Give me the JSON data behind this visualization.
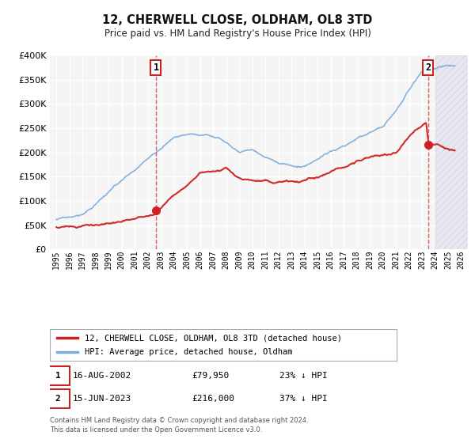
{
  "title": "12, CHERWELL CLOSE, OLDHAM, OL8 3TD",
  "subtitle": "Price paid vs. HM Land Registry's House Price Index (HPI)",
  "ylim": [
    0,
    400000
  ],
  "yticks": [
    0,
    50000,
    100000,
    150000,
    200000,
    250000,
    300000,
    350000,
    400000
  ],
  "xlim_start": 1994.5,
  "xlim_end": 2026.5,
  "background_color": "#f5f5f5",
  "plot_bg_color": "#f5f5f5",
  "grid_color": "#ffffff",
  "hpi_color": "#7aabdb",
  "price_color": "#cc2222",
  "sale1_date": 2002.62,
  "sale1_price": 79950,
  "sale1_label": "1",
  "sale2_date": 2023.46,
  "sale2_price": 216000,
  "sale2_label": "2",
  "legend_line1": "12, CHERWELL CLOSE, OLDHAM, OL8 3TD (detached house)",
  "legend_line2": "HPI: Average price, detached house, Oldham",
  "info1_num": "1",
  "info1_date": "16-AUG-2002",
  "info1_price": "£79,950",
  "info1_hpi": "23% ↓ HPI",
  "info2_num": "2",
  "info2_date": "15-JUN-2023",
  "info2_price": "£216,000",
  "info2_hpi": "37% ↓ HPI",
  "footnote1": "Contains HM Land Registry data © Crown copyright and database right 2024.",
  "footnote2": "This data is licensed under the Open Government Licence v3.0.",
  "hatch_color": "#e8e8f0"
}
